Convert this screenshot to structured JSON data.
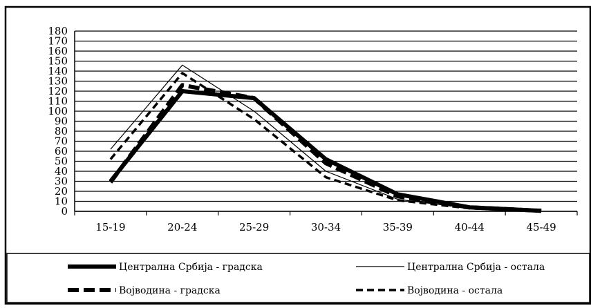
{
  "chart_data": {
    "type": "line",
    "title": "",
    "xlabel": "",
    "ylabel": "",
    "categories": [
      "15-19",
      "20-24",
      "25-29",
      "30-34",
      "35-39",
      "40-44",
      "45-49"
    ],
    "ylim": [
      0,
      180
    ],
    "yticks": [
      0,
      10,
      20,
      30,
      40,
      50,
      60,
      70,
      80,
      90,
      100,
      110,
      120,
      130,
      140,
      150,
      160,
      170,
      180
    ],
    "grid": true,
    "legend_position": "bottom",
    "series": [
      {
        "name": "Централна Србија - градска",
        "style": "thick-solid",
        "color": "#000000",
        "values": [
          30,
          120,
          113,
          52,
          17,
          4,
          0.5
        ]
      },
      {
        "name": "Централна Србија - остала",
        "style": "thin-solid",
        "color": "#000000",
        "values": [
          62,
          146,
          100,
          40,
          12,
          3,
          0.5
        ]
      },
      {
        "name": "Војводина - градска",
        "style": "thick-dashed",
        "color": "#000000",
        "values": [
          29,
          126,
          113,
          48,
          15,
          4,
          0.5
        ]
      },
      {
        "name": "Војводина - остала",
        "style": "dashed",
        "color": "#000000",
        "values": [
          52,
          138,
          92,
          34,
          11,
          3,
          0.4
        ]
      }
    ]
  }
}
